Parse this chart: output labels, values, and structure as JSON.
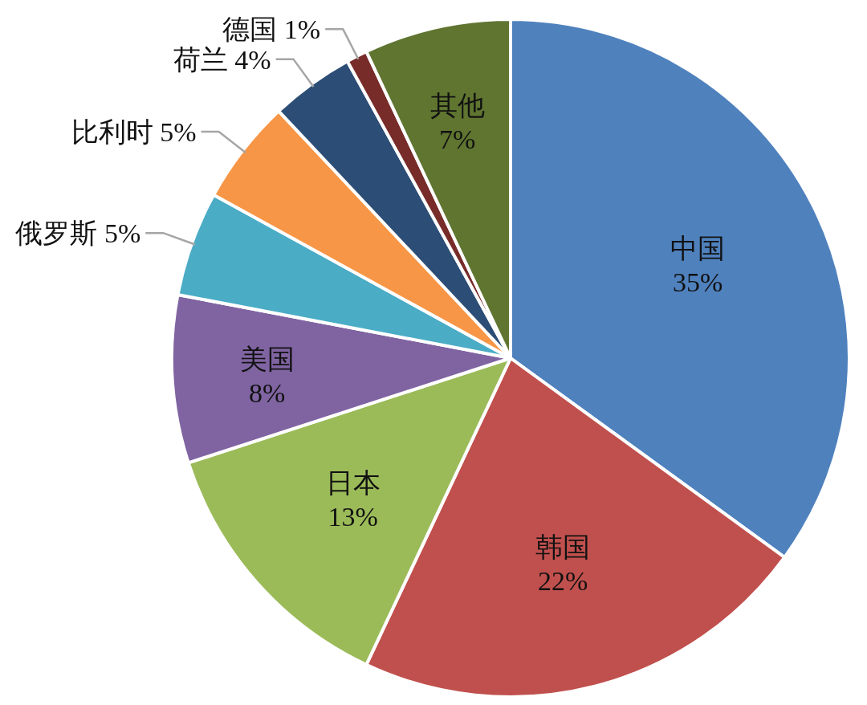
{
  "chart_data": {
    "type": "pie",
    "categories": [
      "中国",
      "韩国",
      "日本",
      "美国",
      "俄罗斯",
      "比利时",
      "荷兰",
      "德国",
      "其他"
    ],
    "values": [
      35,
      22,
      13,
      8,
      5,
      5,
      4,
      1,
      7
    ],
    "colors": [
      "#4f81bd",
      "#c0504d",
      "#9bbb59",
      "#8064a2",
      "#4bacc6",
      "#f79646",
      "#2c4d75",
      "#772c2a",
      "#5f7530"
    ],
    "value_labels": [
      "35%",
      "22%",
      "13%",
      "8%",
      "5%",
      "5%",
      "4%",
      "1%",
      "7%"
    ]
  }
}
